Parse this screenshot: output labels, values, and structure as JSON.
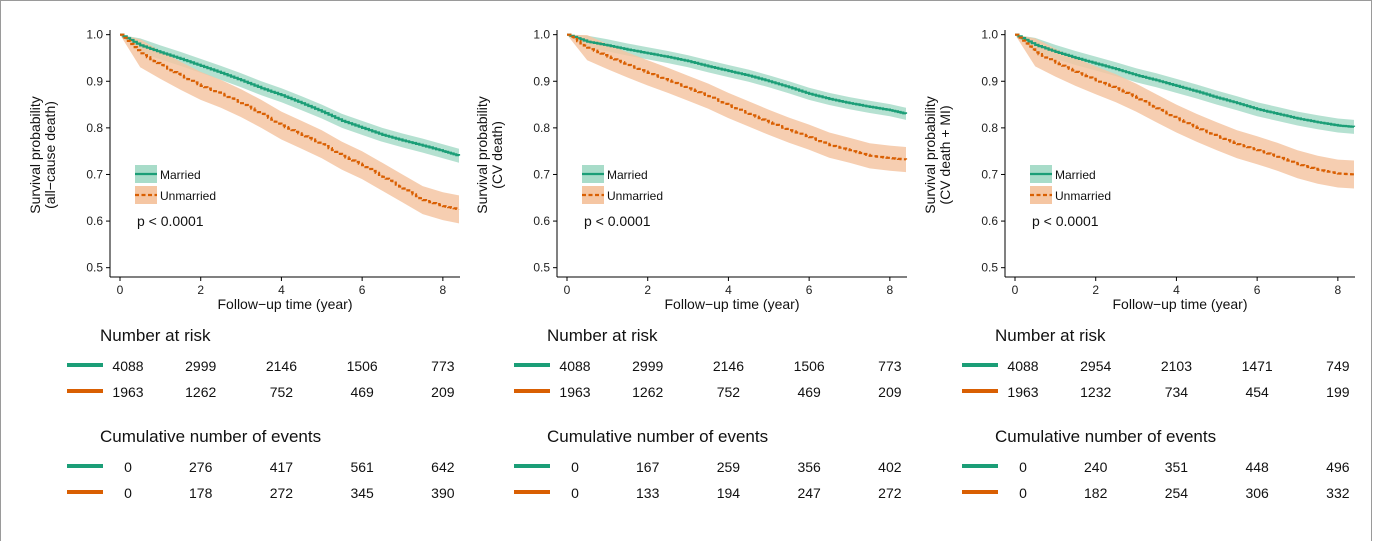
{
  "colors": {
    "married": "#1b9e77",
    "married_band": "#a8dcc9",
    "unmarried": "#d95f02",
    "unmarried_band": "#f5c6a3"
  },
  "legend": {
    "married": "Married",
    "unmarried": "Unmarried"
  },
  "xlabel": "Follow−up time (year)",
  "risk_title": "Number at risk",
  "events_title": "Cumulative number of events",
  "chart_data": [
    {
      "type": "line",
      "ylabel_lines": [
        "Survival probability",
        "(all−cause death)"
      ],
      "pvalue": "p < 0.0001",
      "xlabel": "Follow−up time (year)",
      "xlim": [
        0,
        8.4
      ],
      "ylim": [
        0.48,
        1.01
      ],
      "xticks": [
        0,
        2,
        4,
        6,
        8
      ],
      "yticks": [
        0.5,
        0.6,
        0.7,
        0.8,
        0.9,
        1.0
      ],
      "series": [
        {
          "name": "Married",
          "x": [
            0,
            0.5,
            1,
            1.5,
            2,
            2.5,
            3,
            3.5,
            4,
            4.5,
            5,
            5.5,
            6,
            6.5,
            7,
            7.5,
            8,
            8.4
          ],
          "y": [
            1.0,
            0.977,
            0.962,
            0.948,
            0.933,
            0.918,
            0.902,
            0.885,
            0.87,
            0.853,
            0.835,
            0.815,
            0.8,
            0.785,
            0.773,
            0.762,
            0.75,
            0.74
          ],
          "band": 0.015
        },
        {
          "name": "Unmarried",
          "x": [
            0,
            0.5,
            1,
            1.5,
            2,
            2.5,
            3,
            3.5,
            4,
            4.5,
            5,
            5.5,
            6,
            6.5,
            7,
            7.5,
            8,
            8.4
          ],
          "y": [
            1.0,
            0.96,
            0.935,
            0.912,
            0.89,
            0.873,
            0.853,
            0.83,
            0.805,
            0.785,
            0.765,
            0.74,
            0.72,
            0.695,
            0.67,
            0.645,
            0.632,
            0.625
          ],
          "band": 0.03
        }
      ],
      "risk": {
        "times": [
          0,
          2,
          4,
          6,
          8
        ],
        "married": [
          4088,
          2999,
          2146,
          1506,
          773
        ],
        "unmarried": [
          1963,
          1262,
          752,
          469,
          209
        ]
      },
      "events": {
        "times": [
          0,
          2,
          4,
          6,
          8
        ],
        "married": [
          0,
          276,
          417,
          561,
          642
        ],
        "unmarried": [
          0,
          178,
          272,
          345,
          390
        ]
      }
    },
    {
      "type": "line",
      "ylabel_lines": [
        "Survival probability",
        "(CV death)"
      ],
      "pvalue": "p < 0.0001",
      "xlabel": "Follow−up time (year)",
      "xlim": [
        0,
        8.4
      ],
      "ylim": [
        0.48,
        1.01
      ],
      "xticks": [
        0,
        2,
        4,
        6,
        8
      ],
      "yticks": [
        0.5,
        0.6,
        0.7,
        0.8,
        0.9,
        1.0
      ],
      "series": [
        {
          "name": "Married",
          "x": [
            0,
            0.5,
            1,
            1.5,
            2,
            2.5,
            3,
            3.5,
            4,
            4.5,
            5,
            5.5,
            6,
            6.5,
            7,
            7.5,
            8,
            8.4
          ],
          "y": [
            1.0,
            0.985,
            0.977,
            0.968,
            0.96,
            0.952,
            0.943,
            0.932,
            0.922,
            0.912,
            0.9,
            0.887,
            0.873,
            0.862,
            0.853,
            0.845,
            0.838,
            0.83
          ],
          "band": 0.013
        },
        {
          "name": "Unmarried",
          "x": [
            0,
            0.5,
            1,
            1.5,
            2,
            2.5,
            3,
            3.5,
            4,
            4.5,
            5,
            5.5,
            6,
            6.5,
            7,
            7.5,
            8,
            8.4
          ],
          "y": [
            1.0,
            0.972,
            0.953,
            0.935,
            0.918,
            0.902,
            0.885,
            0.868,
            0.848,
            0.83,
            0.812,
            0.795,
            0.78,
            0.763,
            0.752,
            0.74,
            0.735,
            0.732
          ],
          "band": 0.027
        }
      ],
      "risk": {
        "times": [
          0,
          2,
          4,
          6,
          8
        ],
        "married": [
          4088,
          2999,
          2146,
          1506,
          773
        ],
        "unmarried": [
          1963,
          1262,
          752,
          469,
          209
        ]
      },
      "events": {
        "times": [
          0,
          2,
          4,
          6,
          8
        ],
        "married": [
          0,
          167,
          259,
          356,
          402
        ],
        "unmarried": [
          0,
          133,
          194,
          247,
          272
        ]
      }
    },
    {
      "type": "line",
      "ylabel_lines": [
        "Survival probability",
        "(CV death + MI)"
      ],
      "pvalue": "p < 0.0001",
      "xlabel": "Follow−up time (year)",
      "xlim": [
        0,
        8.4
      ],
      "ylim": [
        0.48,
        1.01
      ],
      "xticks": [
        0,
        2,
        4,
        6,
        8
      ],
      "yticks": [
        0.5,
        0.6,
        0.7,
        0.8,
        0.9,
        1.0
      ],
      "series": [
        {
          "name": "Married",
          "x": [
            0,
            0.5,
            1,
            1.5,
            2,
            2.5,
            3,
            3.5,
            4,
            4.5,
            5,
            5.5,
            6,
            6.5,
            7,
            7.5,
            8,
            8.4
          ],
          "y": [
            1.0,
            0.978,
            0.963,
            0.95,
            0.938,
            0.926,
            0.913,
            0.902,
            0.89,
            0.878,
            0.865,
            0.853,
            0.84,
            0.83,
            0.82,
            0.812,
            0.805,
            0.802
          ],
          "band": 0.015
        },
        {
          "name": "Unmarried",
          "x": [
            0,
            0.5,
            1,
            1.5,
            2,
            2.5,
            3,
            3.5,
            4,
            4.5,
            5,
            5.5,
            6,
            6.5,
            7,
            7.5,
            8,
            8.4
          ],
          "y": [
            1.0,
            0.962,
            0.94,
            0.92,
            0.902,
            0.885,
            0.865,
            0.842,
            0.82,
            0.8,
            0.782,
            0.765,
            0.752,
            0.738,
            0.722,
            0.71,
            0.702,
            0.7
          ],
          "band": 0.03
        }
      ],
      "risk": {
        "times": [
          0,
          2,
          4,
          6,
          8
        ],
        "married": [
          4088,
          2954,
          2103,
          1471,
          749
        ],
        "unmarried": [
          1963,
          1232,
          734,
          454,
          199
        ]
      },
      "events": {
        "times": [
          0,
          2,
          4,
          6,
          8
        ],
        "married": [
          0,
          240,
          351,
          448,
          496
        ],
        "unmarried": [
          0,
          182,
          254,
          306,
          332
        ]
      }
    }
  ]
}
